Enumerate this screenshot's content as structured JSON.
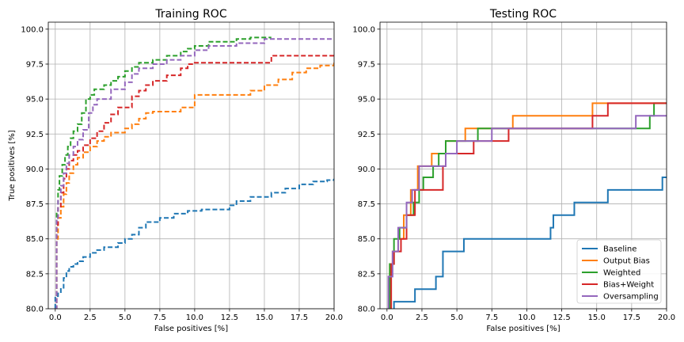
{
  "chart_data": [
    {
      "type": "line",
      "title": "Training ROC",
      "xlabel": "False positives [%]",
      "ylabel": "True positives [%]",
      "xlim": [
        -0.5,
        20.0
      ],
      "ylim": [
        80.0,
        100.5
      ],
      "xticks": [
        "0.0",
        "2.5",
        "5.0",
        "7.5",
        "10.0",
        "12.5",
        "15.0",
        "17.5",
        "20.0"
      ],
      "yticks": [
        "80.0",
        "82.5",
        "85.0",
        "87.5",
        "90.0",
        "92.5",
        "95.0",
        "97.5",
        "100.0"
      ],
      "grid": true,
      "line_style": "dashed",
      "series": [
        {
          "name": "Baseline",
          "color": "#1f77b4",
          "x": [
            0.0,
            0.0,
            0.2,
            0.4,
            0.6,
            0.8,
            1.0,
            1.3,
            1.6,
            2.0,
            2.5,
            3.0,
            3.5,
            4.5,
            5.0,
            5.5,
            6.0,
            6.5,
            7.5,
            8.5,
            9.5,
            10.5,
            12.5,
            13.0,
            14.0,
            15.5,
            16.5,
            17.5,
            18.5,
            19.5,
            20.0
          ],
          "y": [
            80.0,
            80.9,
            81.1,
            81.5,
            82.2,
            82.7,
            83.0,
            83.2,
            83.4,
            83.7,
            84.0,
            84.2,
            84.4,
            84.7,
            85.0,
            85.3,
            85.8,
            86.2,
            86.5,
            86.8,
            87.0,
            87.1,
            87.4,
            87.7,
            88.0,
            88.3,
            88.6,
            88.9,
            89.1,
            89.2,
            89.3
          ]
        },
        {
          "name": "Output Bias",
          "color": "#ff7f0e",
          "x": [
            0.0,
            0.1,
            0.2,
            0.4,
            0.6,
            0.8,
            1.0,
            1.3,
            1.6,
            2.0,
            2.5,
            3.0,
            3.5,
            4.0,
            5.0,
            5.5,
            6.0,
            6.5,
            7.0,
            9.0,
            10.0,
            14.0,
            15.0,
            16.0,
            17.0,
            18.0,
            19.0,
            20.0
          ],
          "y": [
            80.0,
            85.0,
            86.5,
            87.3,
            88.2,
            89.0,
            89.7,
            90.3,
            90.8,
            91.2,
            91.6,
            92.0,
            92.3,
            92.6,
            92.9,
            93.2,
            93.6,
            94.0,
            94.1,
            94.4,
            95.3,
            95.6,
            96.0,
            96.4,
            96.9,
            97.2,
            97.4,
            97.6
          ]
        },
        {
          "name": "Weighted",
          "color": "#2ca02c",
          "x": [
            0.0,
            0.1,
            0.2,
            0.3,
            0.5,
            0.7,
            0.9,
            1.1,
            1.3,
            1.6,
            1.9,
            2.2,
            2.5,
            2.8,
            3.5,
            4.0,
            4.5,
            5.0,
            5.5,
            6.0,
            7.0,
            8.0,
            9.0,
            9.5,
            10.0,
            11.0,
            13.0,
            14.0,
            15.5
          ],
          "y": [
            80.0,
            87.0,
            88.5,
            89.5,
            90.3,
            91.0,
            91.6,
            92.2,
            92.7,
            93.2,
            94.0,
            95.0,
            95.3,
            95.7,
            96.0,
            96.3,
            96.6,
            97.0,
            97.3,
            97.6,
            97.8,
            98.1,
            98.4,
            98.6,
            98.8,
            99.1,
            99.3,
            99.4,
            99.4
          ]
        },
        {
          "name": "Bias+Weight",
          "color": "#d62728",
          "x": [
            0.0,
            0.1,
            0.2,
            0.4,
            0.6,
            0.8,
            1.0,
            1.3,
            1.6,
            2.0,
            2.5,
            3.0,
            3.5,
            4.0,
            4.5,
            5.5,
            6.0,
            6.5,
            7.0,
            8.0,
            9.0,
            9.5,
            10.0,
            15.5,
            20.0
          ],
          "y": [
            80.0,
            86.0,
            87.3,
            88.3,
            89.3,
            90.0,
            90.6,
            91.0,
            91.3,
            91.7,
            92.2,
            92.7,
            93.3,
            93.9,
            94.4,
            95.2,
            95.6,
            96.0,
            96.3,
            96.7,
            97.2,
            97.5,
            97.6,
            98.1,
            98.2
          ]
        },
        {
          "name": "Oversampling",
          "color": "#9467bd",
          "x": [
            0.0,
            0.1,
            0.2,
            0.4,
            0.6,
            0.8,
            1.0,
            1.3,
            1.6,
            2.0,
            2.4,
            2.7,
            3.0,
            4.0,
            5.0,
            5.5,
            6.0,
            7.0,
            8.0,
            9.0,
            10.0,
            11.0,
            13.0,
            15.0,
            20.0
          ],
          "y": [
            80.0,
            86.5,
            87.8,
            88.8,
            89.7,
            90.4,
            91.0,
            91.6,
            92.1,
            92.8,
            94.0,
            94.6,
            95.0,
            95.7,
            96.2,
            96.8,
            97.2,
            97.5,
            97.8,
            98.1,
            98.5,
            98.8,
            99.0,
            99.3,
            99.3
          ]
        }
      ]
    },
    {
      "type": "line",
      "title": "Testing ROC",
      "xlabel": "False positives [%]",
      "ylabel": "",
      "xlim": [
        -0.5,
        20.0
      ],
      "ylim": [
        80.0,
        100.5
      ],
      "xticks": [
        "0.0",
        "2.5",
        "5.0",
        "7.5",
        "10.0",
        "12.5",
        "15.0",
        "17.5",
        "20.0"
      ],
      "yticks": [
        "80.0",
        "82.5",
        "85.0",
        "87.5",
        "90.0",
        "92.5",
        "95.0",
        "97.5",
        "100.0"
      ],
      "grid": true,
      "line_style": "solid",
      "legend": "lower-right",
      "series": [
        {
          "name": "Baseline",
          "color": "#1f77b4",
          "x": [
            0.5,
            0.5,
            2.0,
            2.0,
            3.5,
            3.5,
            4.0,
            4.0,
            5.5,
            5.5,
            11.7,
            11.7,
            11.9,
            11.9,
            13.4,
            13.4,
            15.8,
            15.8,
            19.7,
            19.7,
            20.0
          ],
          "y": [
            80.0,
            80.5,
            80.5,
            81.4,
            81.4,
            82.3,
            82.3,
            84.1,
            84.1,
            85.0,
            85.0,
            85.8,
            85.8,
            86.7,
            86.7,
            87.6,
            87.6,
            88.5,
            88.5,
            89.4,
            89.4
          ]
        },
        {
          "name": "Output Bias",
          "color": "#ff7f0e",
          "x": [
            0.2,
            0.2,
            0.4,
            0.4,
            0.8,
            0.8,
            1.2,
            1.2,
            1.7,
            1.7,
            2.2,
            2.2,
            2.7,
            2.7,
            3.2,
            3.2,
            4.2,
            4.2,
            5.6,
            5.6,
            7.5,
            7.5,
            9.0,
            9.0,
            14.7,
            14.7,
            20.0
          ],
          "y": [
            80.0,
            83.2,
            83.2,
            84.1,
            84.1,
            85.0,
            85.0,
            86.7,
            86.7,
            88.5,
            88.5,
            90.2,
            90.2,
            90.2,
            90.2,
            91.1,
            91.1,
            92.0,
            92.0,
            92.9,
            92.9,
            92.9,
            92.9,
            93.8,
            93.8,
            94.7,
            94.7
          ]
        },
        {
          "name": "Weighted",
          "color": "#2ca02c",
          "x": [
            0.2,
            0.2,
            0.5,
            0.5,
            0.9,
            0.9,
            1.4,
            1.4,
            1.9,
            1.9,
            2.3,
            2.3,
            2.6,
            2.6,
            3.3,
            3.3,
            3.7,
            3.7,
            4.2,
            4.2,
            6.5,
            6.5,
            8.3,
            8.3,
            18.8,
            18.8,
            19.1,
            19.1,
            20.0
          ],
          "y": [
            80.0,
            83.2,
            83.2,
            85.0,
            85.0,
            85.8,
            85.8,
            86.7,
            86.7,
            87.6,
            87.6,
            88.5,
            88.5,
            89.4,
            89.4,
            90.2,
            90.2,
            91.1,
            91.1,
            92.0,
            92.0,
            92.9,
            92.9,
            92.9,
            92.9,
            93.8,
            93.8,
            94.7,
            94.7
          ]
        },
        {
          "name": "Bias+Weight",
          "color": "#d62728",
          "x": [
            0.3,
            0.3,
            0.5,
            0.5,
            1.0,
            1.0,
            1.4,
            1.4,
            2.0,
            2.0,
            4.0,
            4.0,
            4.2,
            4.2,
            6.2,
            6.2,
            7.5,
            7.5,
            8.7,
            8.7,
            14.7,
            14.7,
            15.8,
            15.8,
            20.0
          ],
          "y": [
            80.0,
            83.2,
            83.2,
            84.1,
            84.1,
            85.0,
            85.0,
            86.7,
            86.7,
            88.5,
            88.5,
            90.2,
            90.2,
            91.1,
            91.1,
            92.0,
            92.0,
            92.0,
            92.0,
            92.9,
            92.9,
            93.8,
            93.8,
            94.7,
            94.7
          ]
        },
        {
          "name": "Oversampling",
          "color": "#9467bd",
          "x": [
            0.1,
            0.1,
            0.4,
            0.4,
            0.8,
            0.8,
            1.4,
            1.4,
            1.8,
            1.8,
            2.3,
            2.3,
            4.2,
            4.2,
            5.0,
            5.0,
            7.5,
            7.5,
            17.8,
            17.8,
            20.0
          ],
          "y": [
            80.0,
            82.3,
            82.3,
            84.1,
            84.1,
            85.8,
            85.8,
            87.6,
            87.6,
            88.5,
            88.5,
            90.2,
            90.2,
            91.1,
            91.1,
            92.0,
            92.0,
            92.9,
            92.9,
            93.8,
            93.8
          ]
        }
      ]
    }
  ]
}
